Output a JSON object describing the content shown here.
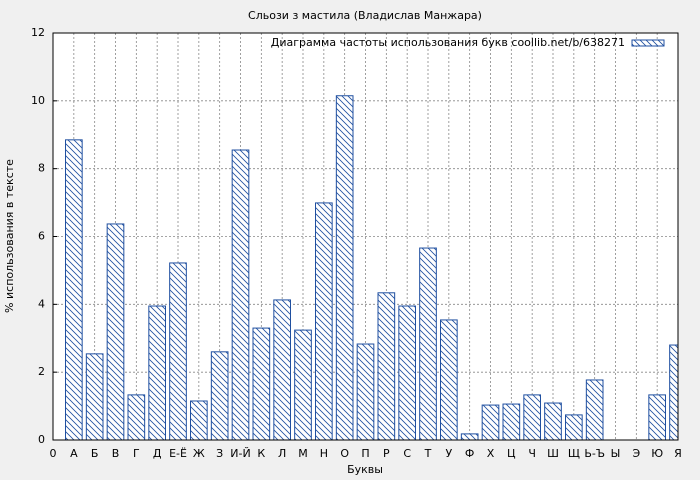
{
  "chart_data": {
    "type": "bar",
    "title": "Сльози з мастила (Владислав Манжара)",
    "x_label": "Буквы",
    "y_label": "% использования в тексте",
    "categories": [
      "0",
      "А",
      "Б",
      "В",
      "Г",
      "Д",
      "Е-Ё",
      "Ж",
      "З",
      "И-Й",
      "К",
      "Л",
      "М",
      "Н",
      "О",
      "П",
      "Р",
      "С",
      "Т",
      "У",
      "Ф",
      "Х",
      "Ц",
      "Ч",
      "Ш",
      "Щ",
      "Ь-Ъ",
      "Ы",
      "Э",
      "Ю",
      "Я"
    ],
    "series": [
      {
        "name": "Диаграмма частоты использования букв coollib.net/b/638271",
        "color": "#1f4fa0",
        "values": [
          null,
          8.85,
          2.54,
          6.37,
          1.33,
          3.95,
          5.22,
          1.15,
          2.6,
          8.55,
          3.3,
          4.13,
          3.24,
          6.99,
          10.15,
          2.83,
          4.34,
          3.95,
          5.66,
          3.54,
          0.18,
          1.03,
          1.06,
          1.33,
          1.09,
          0.74,
          1.77,
          0,
          0,
          1.33,
          2.8
        ]
      }
    ],
    "ylim": [
      0,
      12
    ],
    "yticks": [
      0,
      2,
      4,
      6,
      8,
      10,
      12
    ],
    "grid": true,
    "legend": "upper right",
    "hatch": true
  }
}
